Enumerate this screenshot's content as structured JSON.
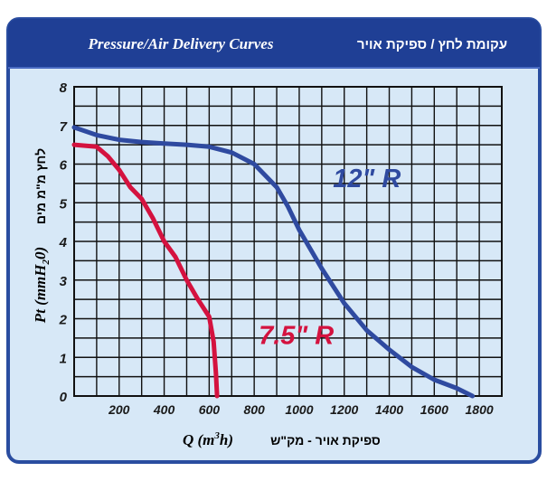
{
  "colors": {
    "frame": "#2a4da0",
    "header_bar": "#1f3f95",
    "plot_bg": "#d7e8f7",
    "grid": "#111111",
    "series_12": "#2f4aa0",
    "series_75": "#d4123f"
  },
  "header": {
    "title_en": "Pressure/Air Delivery Curves",
    "title_he": "עקומת לחץ / ספיקת אויר"
  },
  "chart_data": {
    "type": "line",
    "title": "Pressure/Air Delivery Curves",
    "xlabel_formula": "Q (m³h)",
    "xlabel_he": "ספיקת אויר - מק\"ש",
    "ylabel_formula": "Pt (mmH₂0)",
    "ylabel_he": "לחץ מ\"מ מים",
    "xlim": [
      0,
      1900
    ],
    "ylim": [
      0,
      8
    ],
    "x_ticks": [
      200,
      400,
      600,
      800,
      1000,
      1200,
      1400,
      1600,
      1800
    ],
    "y_ticks": [
      0,
      1,
      2,
      3,
      4,
      5,
      6,
      7,
      8
    ],
    "grid": true,
    "series": [
      {
        "name": "12\" R",
        "color": "#2f4aa0",
        "x": [
          0,
          100,
          200,
          300,
          400,
          500,
          600,
          700,
          800,
          900,
          950,
          1000,
          1100,
          1200,
          1300,
          1400,
          1500,
          1600,
          1700,
          1770
        ],
        "y": [
          6.95,
          6.75,
          6.63,
          6.57,
          6.53,
          6.5,
          6.45,
          6.3,
          6.0,
          5.4,
          4.9,
          4.3,
          3.3,
          2.4,
          1.7,
          1.2,
          0.75,
          0.42,
          0.2,
          0.0
        ]
      },
      {
        "name": "7.5\" R",
        "color": "#d4123f",
        "x": [
          0,
          100,
          150,
          200,
          250,
          300,
          350,
          400,
          450,
          500,
          550,
          600,
          620,
          630,
          635
        ],
        "y": [
          6.5,
          6.45,
          6.2,
          5.85,
          5.4,
          5.1,
          4.6,
          4.0,
          3.6,
          3.0,
          2.5,
          2.05,
          1.4,
          0.6,
          0.0
        ]
      }
    ],
    "annotations": [
      {
        "text": "12\" R",
        "series": "12\" R",
        "x": 1150,
        "y": 5.4
      },
      {
        "text": "7.5\" R",
        "series": "7.5\" R",
        "x": 820,
        "y": 1.35
      }
    ]
  }
}
